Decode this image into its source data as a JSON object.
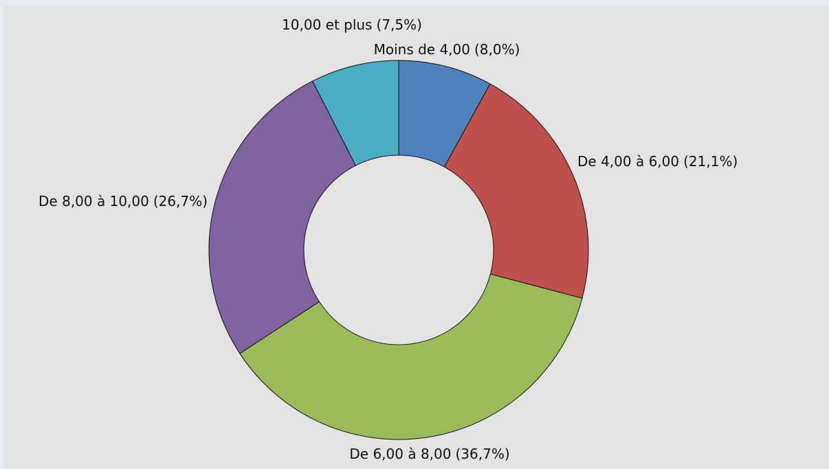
{
  "chart_data": {
    "type": "donut",
    "categories": [
      "Moins de 4,00",
      "De 4,00 à 6,00",
      "De 6,00 à 8,00",
      "De 8,00 à 10,00",
      "10,00 et plus"
    ],
    "values": [
      8.0,
      21.1,
      36.7,
      26.7,
      7.5
    ],
    "value_labels": [
      "(8,0%)",
      "(21,1%)",
      "(36,7%)",
      "(26,7%)",
      "(7,5%)"
    ],
    "colors": [
      "#4f81bd",
      "#c0504d",
      "#9bbb59",
      "#8064a2",
      "#4bacc6"
    ]
  }
}
